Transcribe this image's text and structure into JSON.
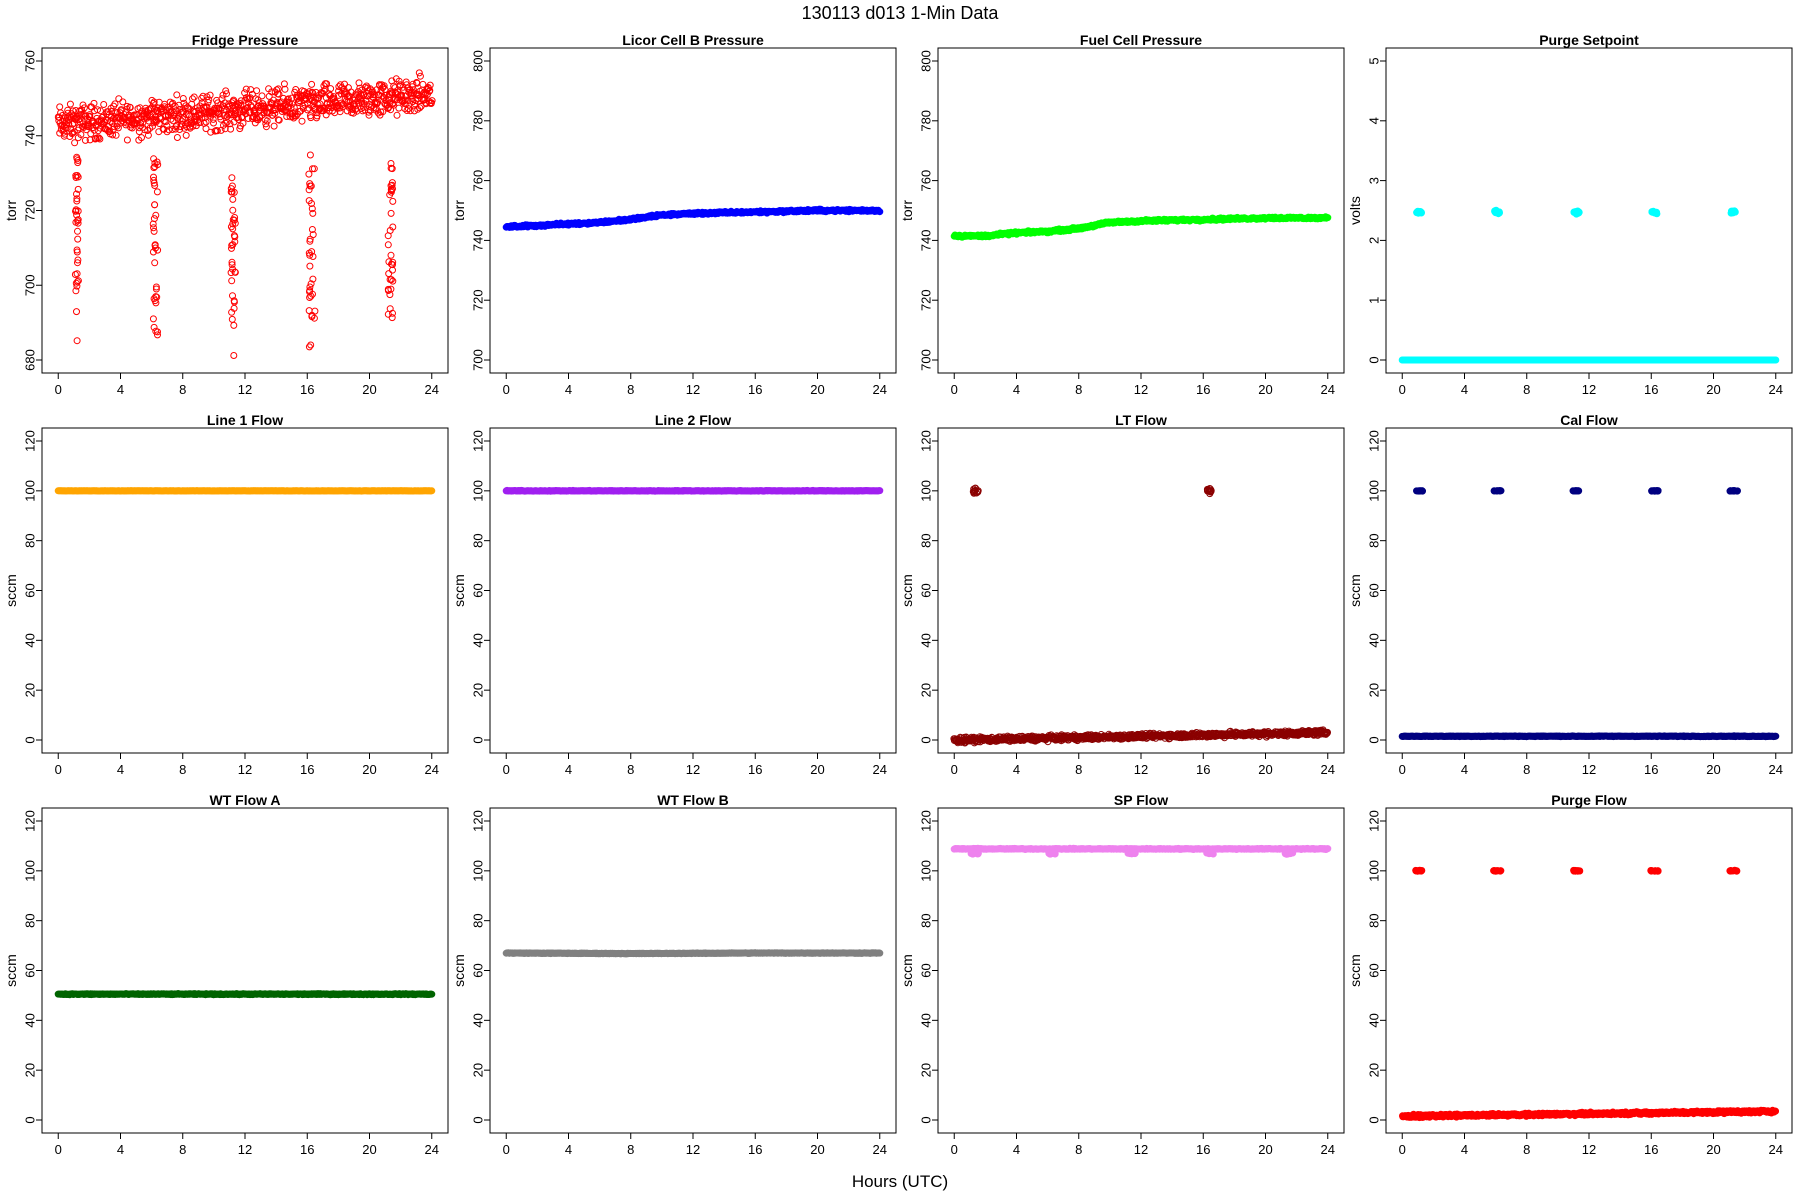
{
  "title": "130113    d013    1-Min Data",
  "xlabel": "Hours (UTC)",
  "chart_data": [
    {
      "type": "scatter",
      "title": "Fridge Pressure",
      "ylabel": "torr",
      "xlim": [
        0,
        24
      ],
      "ylim": [
        680,
        760
      ],
      "yticks": [
        680,
        700,
        720,
        740,
        760
      ],
      "xticks": [
        0,
        4,
        8,
        12,
        16,
        20,
        24
      ],
      "color": "#ff0000",
      "marker": "open",
      "series": [
        {
          "kind": "band",
          "segments": [
            {
              "x": [
                0,
                24
              ],
              "y": [
                743,
                751
              ],
              "jitter": 7
            }
          ]
        },
        {
          "kind": "drop",
          "x": [
            1.1,
            1.3
          ],
          "y": [
            682,
            735
          ]
        },
        {
          "kind": "drop",
          "x": [
            6.1,
            6.4
          ],
          "y": [
            683,
            735
          ]
        },
        {
          "kind": "drop",
          "x": [
            11.1,
            11.4
          ],
          "y": [
            681,
            731
          ]
        },
        {
          "kind": "drop",
          "x": [
            16.1,
            16.5
          ],
          "y": [
            683,
            735
          ]
        },
        {
          "kind": "drop",
          "x": [
            21.2,
            21.5
          ],
          "y": [
            689,
            733
          ]
        }
      ]
    },
    {
      "type": "scatter",
      "title": "Licor Cell B Pressure",
      "ylabel": "torr",
      "xlim": [
        0,
        24
      ],
      "ylim": [
        700,
        800
      ],
      "yticks": [
        700,
        720,
        740,
        760,
        780,
        800
      ],
      "xticks": [
        0,
        4,
        8,
        12,
        16,
        20,
        24
      ],
      "color": "#0000ff",
      "marker": "filled",
      "series": [
        {
          "kind": "line",
          "x": [
            0,
            2,
            4,
            6,
            8,
            10,
            12,
            16,
            20,
            24
          ],
          "y": [
            744.5,
            745,
            745.5,
            746,
            747,
            748.5,
            749,
            749.5,
            750,
            750
          ],
          "jitter": 0.6
        }
      ]
    },
    {
      "type": "scatter",
      "title": "Fuel Cell Pressure",
      "ylabel": "torr",
      "xlim": [
        0,
        24
      ],
      "ylim": [
        700,
        800
      ],
      "yticks": [
        700,
        720,
        740,
        760,
        780,
        800
      ],
      "xticks": [
        0,
        4,
        8,
        12,
        16,
        20,
        24
      ],
      "color": "#00ff00",
      "marker": "filled",
      "series": [
        {
          "kind": "line",
          "x": [
            0,
            2,
            4,
            6,
            8,
            10,
            12,
            16,
            20,
            24
          ],
          "y": [
            741.5,
            741.5,
            742.5,
            743,
            744,
            746,
            746.5,
            747,
            747.5,
            747.5
          ],
          "jitter": 0.6
        }
      ]
    },
    {
      "type": "scatter",
      "title": "Purge Setpoint",
      "ylabel": "volts",
      "xlim": [
        0,
        24
      ],
      "ylim": [
        0,
        5
      ],
      "yticks": [
        0,
        1,
        2,
        3,
        4,
        5
      ],
      "xticks": [
        0,
        4,
        8,
        12,
        16,
        20,
        24
      ],
      "color": "#00ffff",
      "marker": "filled",
      "series": [
        {
          "kind": "line",
          "x": [
            0,
            24
          ],
          "y": [
            0,
            0
          ],
          "jitter": 0
        },
        {
          "kind": "clusters",
          "x": [
            1.1,
            6.1,
            11.2,
            16.2,
            21.3
          ],
          "y": 2.47,
          "width": 0.35,
          "jitter": 0.04
        }
      ]
    },
    {
      "type": "scatter",
      "title": "Line 1 Flow",
      "ylabel": "sccm",
      "xlim": [
        0,
        24
      ],
      "ylim": [
        0,
        120
      ],
      "yticks": [
        0,
        20,
        40,
        60,
        80,
        100,
        120
      ],
      "xticks": [
        0,
        4,
        8,
        12,
        16,
        20,
        24
      ],
      "color": "#ffa500",
      "marker": "filled",
      "series": [
        {
          "kind": "line",
          "x": [
            0,
            24
          ],
          "y": [
            100,
            100
          ],
          "jitter": 0.1
        }
      ]
    },
    {
      "type": "scatter",
      "title": "Line 2 Flow",
      "ylabel": "sccm",
      "xlim": [
        0,
        24
      ],
      "ylim": [
        0,
        120
      ],
      "yticks": [
        0,
        20,
        40,
        60,
        80,
        100,
        120
      ],
      "xticks": [
        0,
        4,
        8,
        12,
        16,
        20,
        24
      ],
      "color": "#a020f0",
      "marker": "filled",
      "series": [
        {
          "kind": "line",
          "x": [
            0,
            24
          ],
          "y": [
            100,
            100
          ],
          "jitter": 0.2
        }
      ]
    },
    {
      "type": "scatter",
      "title": "LT Flow",
      "ylabel": "sccm",
      "xlim": [
        0,
        24
      ],
      "ylim": [
        0,
        120
      ],
      "yticks": [
        0,
        20,
        40,
        60,
        80,
        100,
        120
      ],
      "xticks": [
        0,
        4,
        8,
        12,
        16,
        20,
        24
      ],
      "color": "#8b0000",
      "marker": "open",
      "series": [
        {
          "kind": "band",
          "segments": [
            {
              "x": [
                0,
                24
              ],
              "y": [
                0,
                3
              ],
              "jitter": 1.5
            }
          ]
        },
        {
          "kind": "clusters",
          "x": [
            1.4,
            16.4
          ],
          "y": 100,
          "width": 0.35,
          "jitter": 1.5
        }
      ]
    },
    {
      "type": "scatter",
      "title": "Cal Flow",
      "ylabel": "sccm",
      "xlim": [
        0,
        24
      ],
      "ylim": [
        0,
        120
      ],
      "yticks": [
        0,
        20,
        40,
        60,
        80,
        100,
        120
      ],
      "xticks": [
        0,
        4,
        8,
        12,
        16,
        20,
        24
      ],
      "color": "#000080",
      "marker": "filled",
      "series": [
        {
          "kind": "line",
          "x": [
            0,
            24
          ],
          "y": [
            1.5,
            1.5
          ],
          "jitter": 0.2
        },
        {
          "kind": "clusters",
          "x": [
            1.1,
            6.1,
            11.2,
            16.2,
            21.3
          ],
          "y": 100,
          "width": 0.5,
          "jitter": 0.2
        }
      ]
    },
    {
      "type": "scatter",
      "title": "WT Flow A",
      "ylabel": "sccm",
      "xlim": [
        0,
        24
      ],
      "ylim": [
        0,
        120
      ],
      "yticks": [
        0,
        20,
        40,
        60,
        80,
        100,
        120
      ],
      "xticks": [
        0,
        4,
        8,
        12,
        16,
        20,
        24
      ],
      "color": "#006400",
      "marker": "filled",
      "series": [
        {
          "kind": "line",
          "x": [
            0,
            24
          ],
          "y": [
            50.5,
            50.5
          ],
          "jitter": 0.3
        }
      ]
    },
    {
      "type": "scatter",
      "title": "WT Flow B",
      "ylabel": "sccm",
      "xlim": [
        0,
        24
      ],
      "ylim": [
        0,
        120
      ],
      "yticks": [
        0,
        20,
        40,
        60,
        80,
        100,
        120
      ],
      "xticks": [
        0,
        4,
        8,
        12,
        16,
        20,
        24
      ],
      "color": "#808080",
      "marker": "filled",
      "series": [
        {
          "kind": "line",
          "x": [
            0,
            8,
            16,
            24
          ],
          "y": [
            67,
            66.8,
            67,
            67
          ],
          "jitter": 0.2
        }
      ]
    },
    {
      "type": "scatter",
      "title": "SP Flow",
      "ylabel": "sccm",
      "xlim": [
        0,
        24
      ],
      "ylim": [
        0,
        120
      ],
      "yticks": [
        0,
        20,
        40,
        60,
        80,
        100,
        120
      ],
      "xticks": [
        0,
        4,
        8,
        12,
        16,
        20,
        24
      ],
      "color": "#ee82ee",
      "marker": "filled",
      "series": [
        {
          "kind": "line",
          "x": [
            0,
            24
          ],
          "y": [
            108.8,
            108.8
          ],
          "jitter": 0.3
        },
        {
          "kind": "clusters",
          "x": [
            1.3,
            6.3,
            11.4,
            16.4,
            21.5
          ],
          "y": 107,
          "width": 0.5,
          "jitter": 0.5
        }
      ]
    },
    {
      "type": "scatter",
      "title": "Purge Flow",
      "ylabel": "sccm",
      "xlim": [
        0,
        24
      ],
      "ylim": [
        0,
        120
      ],
      "yticks": [
        0,
        20,
        40,
        60,
        80,
        100,
        120
      ],
      "xticks": [
        0,
        4,
        8,
        12,
        16,
        20,
        24
      ],
      "color": "#ff0000",
      "marker": "filled",
      "series": [
        {
          "kind": "band",
          "segments": [
            {
              "x": [
                0,
                24
              ],
              "y": [
                1.5,
                3.5
              ],
              "jitter": 0.8
            }
          ]
        },
        {
          "kind": "clusters",
          "x": [
            1.1,
            6.1,
            11.2,
            16.2,
            21.3
          ],
          "y": 100,
          "width": 0.5,
          "jitter": 0.3
        }
      ]
    }
  ]
}
